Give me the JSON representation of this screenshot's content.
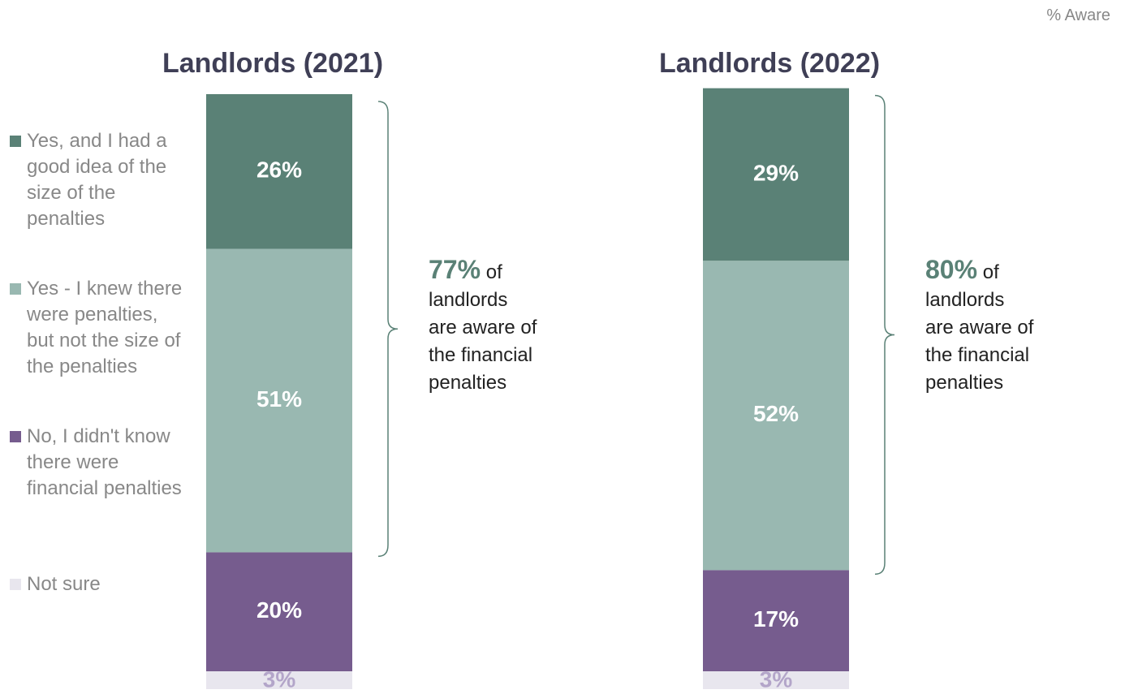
{
  "chart_data": {
    "type": "stacked_bar",
    "note": "% Aware",
    "categories": [
      "Landlords (2021)",
      "Landlords (2022)"
    ],
    "ylim": [
      0,
      100
    ],
    "series": [
      {
        "name": "Yes, and I had a good idea of the size of the penalties",
        "color": "#5a8176",
        "values": [
          26,
          29
        ],
        "value_labels": [
          "26%",
          "29%"
        ]
      },
      {
        "name": "Yes - I knew there were penalties, but not the size of the penalties",
        "color": "#99b8b1",
        "values": [
          51,
          52
        ],
        "value_labels": [
          "51%",
          "52%"
        ]
      },
      {
        "name": "No, I didn't know there were financial penalties",
        "color": "#765c8e",
        "values": [
          20,
          17
        ],
        "value_labels": [
          "20%",
          "17%"
        ]
      },
      {
        "name": "Not sure",
        "color": "#e8e6ee",
        "values": [
          3,
          3
        ],
        "value_labels": [
          "3%",
          "3%"
        ]
      }
    ],
    "annotations": [
      {
        "highlight": "77%",
        "lines": [
          "of",
          "landlords",
          "are aware of",
          "the financial",
          "penalties"
        ]
      },
      {
        "highlight": "80%",
        "lines": [
          "of",
          "landlords",
          "are aware of",
          "the financial",
          "penalties"
        ]
      }
    ]
  }
}
